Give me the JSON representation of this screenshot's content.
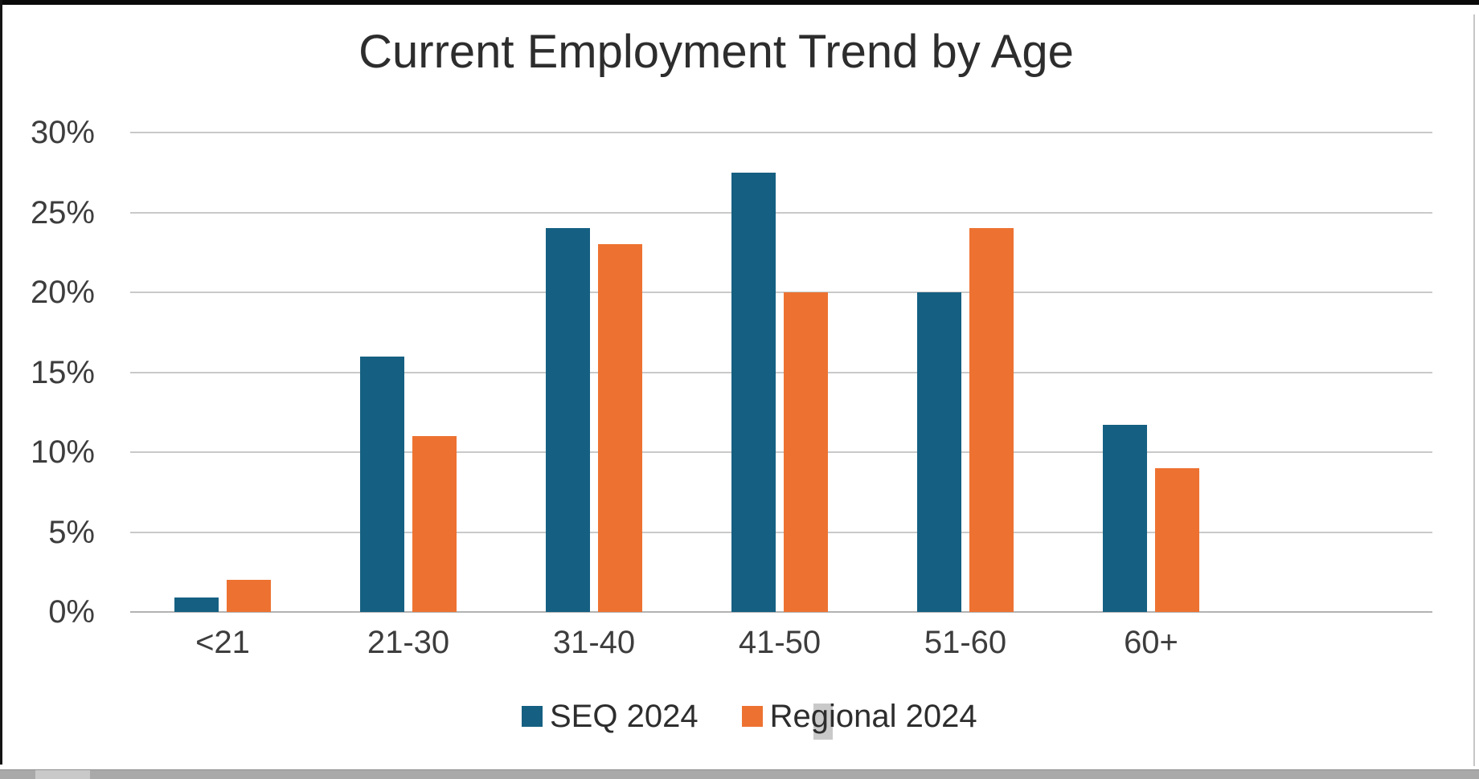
{
  "title": "Current Employment Trend by Age",
  "chart_data": {
    "type": "bar",
    "title": "Current Employment Trend by Age",
    "categories": [
      "<21",
      "21-30",
      "31-40",
      "41-50",
      "51-60",
      "60+"
    ],
    "series": [
      {
        "name": "SEQ 2024",
        "color": "#156082",
        "values": [
          0.9,
          16,
          24,
          27.5,
          20,
          11.7
        ]
      },
      {
        "name": "Regional 2024",
        "color": "#ED7231",
        "values": [
          2,
          11,
          23,
          20,
          24,
          9
        ]
      }
    ],
    "y_ticks": [
      {
        "value": 0,
        "label": "0%"
      },
      {
        "value": 5,
        "label": "5%"
      },
      {
        "value": 10,
        "label": "10%"
      },
      {
        "value": 15,
        "label": "15%"
      },
      {
        "value": 20,
        "label": "20%"
      },
      {
        "value": 25,
        "label": "25%"
      },
      {
        "value": 30,
        "label": "30%"
      }
    ],
    "ylim": [
      0,
      30
    ],
    "xlabel": "",
    "ylabel": "",
    "grid": true,
    "grid_color": "#C9C9C9",
    "legend_position": "bottom"
  }
}
